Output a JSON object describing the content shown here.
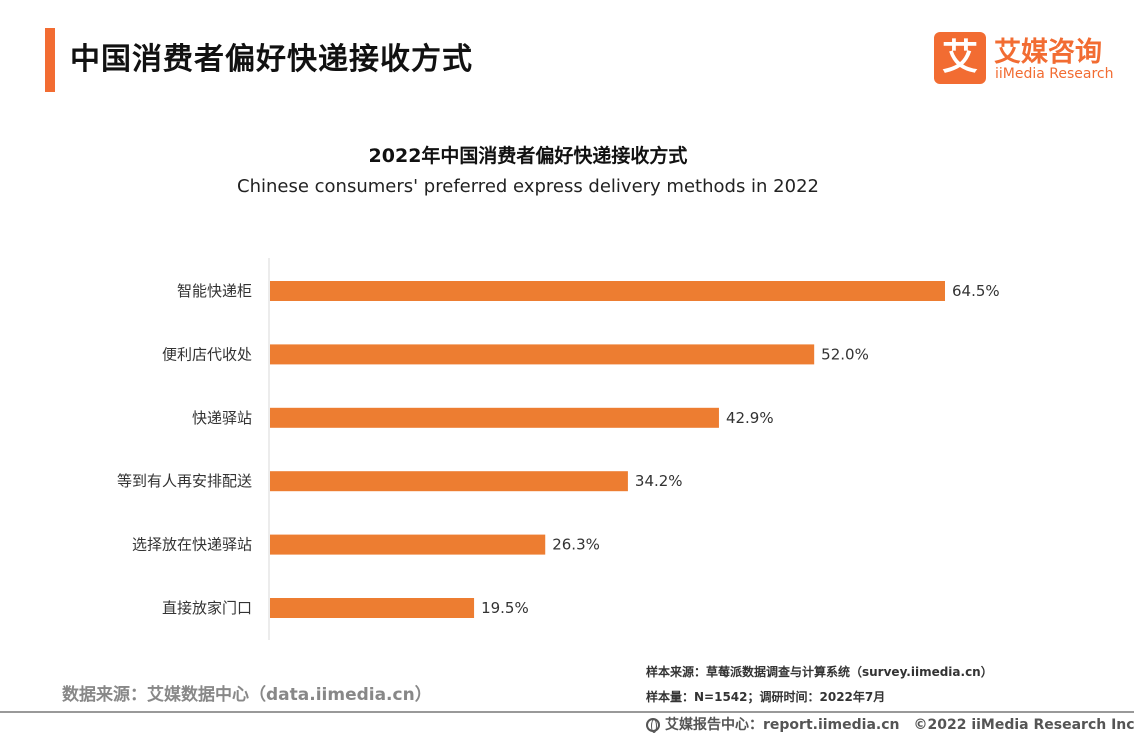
{
  "header": {
    "title": "中国消费者偏好快递接收方式"
  },
  "logo": {
    "mark": "艾",
    "name_cn": "艾媒咨询",
    "name_en": "iiMedia Research",
    "brand_color": "#f26c32"
  },
  "chart_data": {
    "type": "bar",
    "orientation": "horizontal",
    "title": "2022年中国消费者偏好快递接收方式",
    "subtitle": "Chinese consumers' preferred express delivery methods in 2022",
    "categories": [
      "智能快递柜",
      "便利店代收处",
      "快递驿站",
      "等到有人再安排配送",
      "选择放在快递驿站",
      "直接放家门口"
    ],
    "values": [
      64.5,
      52.0,
      42.9,
      34.2,
      26.3,
      19.5
    ],
    "value_labels": [
      "64.5%",
      "52.0%",
      "42.9%",
      "34.2%",
      "26.3%",
      "19.5%"
    ],
    "unit": "%",
    "xlim": [
      0,
      70
    ],
    "bar_color": "#ed7d31",
    "grid": false,
    "legend": "none"
  },
  "footer": {
    "data_source": "数据来源：艾媒数据中心（data.iimedia.cn）",
    "sample_source": "样本来源：草莓派数据调查与计算系统（survey.iimedia.cn）",
    "sample_size": "样本量：N=1542；调研时间：2022年7月",
    "report_center": "艾媒报告中心：report.iimedia.cn",
    "copyright": "©2022  iiMedia Research  Inc"
  }
}
